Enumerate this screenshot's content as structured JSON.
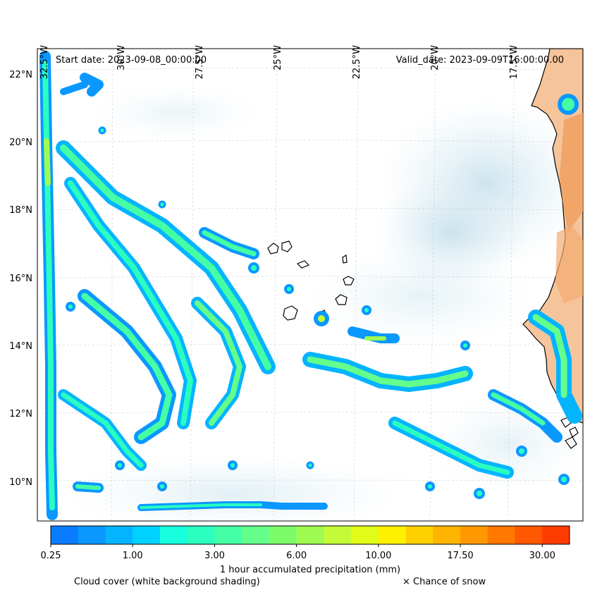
{
  "map": {
    "lon_ticks": [
      "32.5°W",
      "30°W",
      "27.5°W",
      "25°W",
      "22.5°W",
      "20°W",
      "17.5°W"
    ],
    "lat_ticks": [
      "22°N",
      "20°N",
      "18°N",
      "16°N",
      "14°N",
      "12°N",
      "10°N"
    ],
    "start_date": "Start date: 2023-09-08_00:00:00",
    "valid_date": "Valid_date: 2023-09-09T16:00:00.00"
  },
  "colorbar": {
    "label": "1 hour accumulated precipitation (mm)",
    "tick_labels": [
      "0.25",
      "1.00",
      "3.00",
      "6.00",
      "10.00",
      "17.50",
      "30.00"
    ],
    "colors": [
      "#0a7cff",
      "#0a98ff",
      "#05b4ff",
      "#00d2ff",
      "#17ffdc",
      "#2affc0",
      "#45ffa5",
      "#64ff8a",
      "#7dfc6a",
      "#a0fb50",
      "#c4fa38",
      "#e0fc18",
      "#fff000",
      "#ffd000",
      "#ffb400",
      "#ff9800",
      "#ff7800",
      "#ff5800",
      "#ff3c00"
    ]
  },
  "legend": {
    "cloud_cover": "Cloud cover (white background shading)",
    "snow": "× Chance of snow"
  }
}
